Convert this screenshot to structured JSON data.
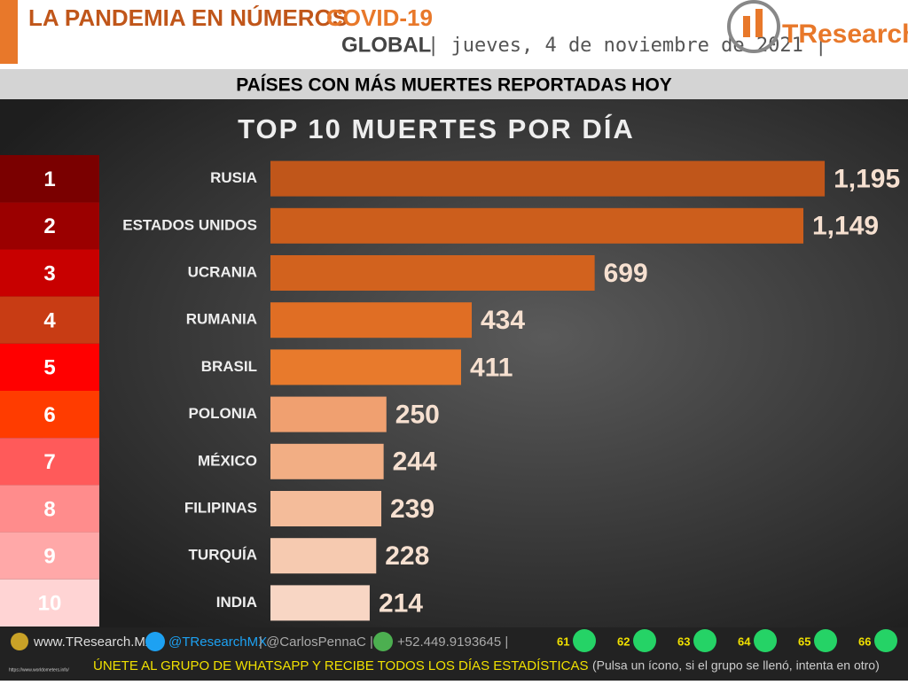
{
  "header": {
    "title": "LA PANDEMIA EN NÚMEROS",
    "title_highlight": "COVID-19",
    "scope": "GLOBAL",
    "date": "| jueves, 4 de noviembre de 2021 |",
    "logo": "TResearch"
  },
  "banner": "PAÍSES CON MÁS MUERTES REPORTADAS HOY",
  "chart_data": {
    "type": "bar",
    "orientation": "horizontal",
    "title": "TOP 10 MUERTES POR DÍA",
    "ranks": [
      1,
      2,
      3,
      4,
      5,
      6,
      7,
      8,
      9,
      10
    ],
    "rank_colors": [
      "#7a0000",
      "#9b0000",
      "#c80000",
      "#c83c14",
      "#ff0000",
      "#ff3c00",
      "#ff5a5a",
      "#ff8c8c",
      "#ffa8a8",
      "#ffd4d4"
    ],
    "categories": [
      "RUSIA",
      "ESTADOS UNIDOS",
      "UCRANIA",
      "RUMANIA",
      "BRASIL",
      "POLONIA",
      "MÉXICO",
      "FILIPINAS",
      "TURQUÍA",
      "INDIA"
    ],
    "values": [
      1195,
      1149,
      699,
      434,
      411,
      250,
      244,
      239,
      228,
      214
    ],
    "value_labels": [
      "1,195",
      "1,149",
      "699",
      "434",
      "411",
      "250",
      "244",
      "239",
      "228",
      "214"
    ],
    "colors": [
      "#c0561a",
      "#cc5e1c",
      "#d2621e",
      "#e06e24",
      "#e87a2c",
      "#f0a070",
      "#f2ae84",
      "#f4bc9a",
      "#f6cab0",
      "#f8d6c4"
    ],
    "xlim": [
      0,
      1300
    ]
  },
  "footer": {
    "website": "www.TResearch.Mx",
    "twitter": "@TResearchMX",
    "twitter2": "| @CarlosPennaC |",
    "phone": "+52.449.9193645 |",
    "groups": [
      "61",
      "62",
      "63",
      "64",
      "65",
      "66"
    ],
    "cta": "ÚNETE AL GRUPO DE WHATSAPP Y RECIBE TODOS LOS DÍAS ESTADÍSTICAS",
    "cta_note": "(Pulsa un ícono, si el grupo se llenó, intenta en otro)",
    "source": "https://www.worldometers.info/"
  }
}
